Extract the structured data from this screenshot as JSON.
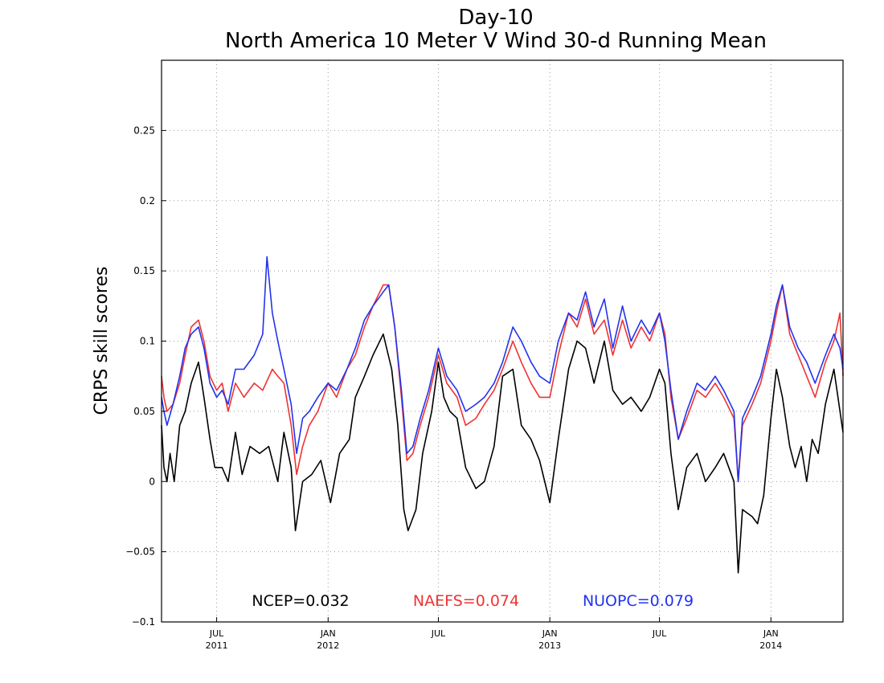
{
  "chart_data": {
    "type": "line",
    "title": "Day-10",
    "subtitle": "North America 10 Meter V Wind 30-d Running Mean",
    "xlabel": "",
    "ylabel": "CRPS skill scores",
    "xlim": [
      "2011-04-01",
      "2014-04-30"
    ],
    "ylim": [
      -0.1,
      0.3
    ],
    "yticks": [
      -0.1,
      -0.05,
      0,
      0.05,
      0.1,
      0.15,
      0.2,
      0.25
    ],
    "ytick_labels": [
      "−0.1",
      "−0.05",
      "0",
      "0.05",
      "0.1",
      "0.15",
      "0.2",
      "0.25"
    ],
    "xticks": [
      {
        "date": "2011-07-01",
        "month": "JUL",
        "year": "2011"
      },
      {
        "date": "2012-01-01",
        "month": "JAN",
        "year": "2012"
      },
      {
        "date": "2012-07-01",
        "month": "JUL",
        "year": ""
      },
      {
        "date": "2013-01-01",
        "month": "JAN",
        "year": "2013"
      },
      {
        "date": "2013-07-01",
        "month": "JUL",
        "year": ""
      },
      {
        "date": "2014-01-01",
        "month": "JAN",
        "year": "2014"
      }
    ],
    "grid": true,
    "legend_placement": "bottom",
    "series": [
      {
        "name": "NCEP",
        "score_label": "NCEP=0.032",
        "color": "#000000",
        "points": [
          [
            "2011-04-01",
            0.04
          ],
          [
            "2011-04-05",
            0.01
          ],
          [
            "2011-04-10",
            0.0
          ],
          [
            "2011-04-15",
            0.02
          ],
          [
            "2011-04-22",
            0.0
          ],
          [
            "2011-05-01",
            0.04
          ],
          [
            "2011-05-10",
            0.05
          ],
          [
            "2011-05-20",
            0.07
          ],
          [
            "2011-06-01",
            0.085
          ],
          [
            "2011-06-10",
            0.06
          ],
          [
            "2011-06-20",
            0.03
          ],
          [
            "2011-06-28",
            0.01
          ],
          [
            "2011-07-10",
            0.01
          ],
          [
            "2011-07-20",
            0.0
          ],
          [
            "2011-08-01",
            0.035
          ],
          [
            "2011-08-12",
            0.005
          ],
          [
            "2011-08-25",
            0.025
          ],
          [
            "2011-09-10",
            0.02
          ],
          [
            "2011-09-25",
            0.025
          ],
          [
            "2011-10-10",
            0.0
          ],
          [
            "2011-10-20",
            0.035
          ],
          [
            "2011-11-01",
            0.01
          ],
          [
            "2011-11-08",
            -0.035
          ],
          [
            "2011-11-20",
            0.0
          ],
          [
            "2011-12-05",
            0.005
          ],
          [
            "2011-12-20",
            0.015
          ],
          [
            "2012-01-05",
            -0.015
          ],
          [
            "2012-01-20",
            0.02
          ],
          [
            "2012-02-05",
            0.03
          ],
          [
            "2012-02-15",
            0.06
          ],
          [
            "2012-03-01",
            0.075
          ],
          [
            "2012-03-15",
            0.09
          ],
          [
            "2012-04-01",
            0.105
          ],
          [
            "2012-04-15",
            0.08
          ],
          [
            "2012-04-25",
            0.04
          ],
          [
            "2012-05-05",
            -0.02
          ],
          [
            "2012-05-12",
            -0.035
          ],
          [
            "2012-05-25",
            -0.02
          ],
          [
            "2012-06-05",
            0.02
          ],
          [
            "2012-06-20",
            0.05
          ],
          [
            "2012-07-01",
            0.085
          ],
          [
            "2012-07-10",
            0.06
          ],
          [
            "2012-07-20",
            0.05
          ],
          [
            "2012-08-01",
            0.045
          ],
          [
            "2012-08-15",
            0.01
          ],
          [
            "2012-09-01",
            -0.005
          ],
          [
            "2012-09-15",
            0.0
          ],
          [
            "2012-10-01",
            0.025
          ],
          [
            "2012-10-15",
            0.075
          ],
          [
            "2012-11-01",
            0.08
          ],
          [
            "2012-11-15",
            0.04
          ],
          [
            "2012-12-01",
            0.03
          ],
          [
            "2012-12-15",
            0.015
          ],
          [
            "2013-01-01",
            -0.015
          ],
          [
            "2013-01-15",
            0.03
          ],
          [
            "2013-02-01",
            0.08
          ],
          [
            "2013-02-15",
            0.1
          ],
          [
            "2013-03-01",
            0.095
          ],
          [
            "2013-03-15",
            0.07
          ],
          [
            "2013-04-01",
            0.1
          ],
          [
            "2013-04-15",
            0.065
          ],
          [
            "2013-05-01",
            0.055
          ],
          [
            "2013-05-15",
            0.06
          ],
          [
            "2013-06-01",
            0.05
          ],
          [
            "2013-06-15",
            0.06
          ],
          [
            "2013-07-01",
            0.08
          ],
          [
            "2013-07-10",
            0.07
          ],
          [
            "2013-07-20",
            0.02
          ],
          [
            "2013-08-01",
            -0.02
          ],
          [
            "2013-08-15",
            0.01
          ],
          [
            "2013-09-01",
            0.02
          ],
          [
            "2013-09-15",
            0.0
          ],
          [
            "2013-10-01",
            0.01
          ],
          [
            "2013-10-15",
            0.02
          ],
          [
            "2013-11-01",
            0.0
          ],
          [
            "2013-11-08",
            -0.065
          ],
          [
            "2013-11-15",
            -0.02
          ],
          [
            "2013-12-01",
            -0.025
          ],
          [
            "2013-12-10",
            -0.03
          ],
          [
            "2013-12-20",
            -0.01
          ],
          [
            "2014-01-01",
            0.045
          ],
          [
            "2014-01-10",
            0.08
          ],
          [
            "2014-01-20",
            0.06
          ],
          [
            "2014-02-01",
            0.025
          ],
          [
            "2014-02-10",
            0.01
          ],
          [
            "2014-02-20",
            0.025
          ],
          [
            "2014-03-01",
            0.0
          ],
          [
            "2014-03-10",
            0.03
          ],
          [
            "2014-03-20",
            0.02
          ],
          [
            "2014-04-01",
            0.055
          ],
          [
            "2014-04-15",
            0.08
          ],
          [
            "2014-04-30",
            0.035
          ]
        ]
      },
      {
        "name": "NAEFS",
        "score_label": "NAEFS=0.074",
        "color": "#ee3333",
        "points": [
          [
            "2011-04-01",
            0.075
          ],
          [
            "2011-04-05",
            0.06
          ],
          [
            "2011-04-10",
            0.05
          ],
          [
            "2011-04-20",
            0.055
          ],
          [
            "2011-05-01",
            0.07
          ],
          [
            "2011-05-10",
            0.09
          ],
          [
            "2011-05-20",
            0.11
          ],
          [
            "2011-06-01",
            0.115
          ],
          [
            "2011-06-10",
            0.1
          ],
          [
            "2011-06-20",
            0.075
          ],
          [
            "2011-07-01",
            0.065
          ],
          [
            "2011-07-10",
            0.07
          ],
          [
            "2011-07-20",
            0.05
          ],
          [
            "2011-08-01",
            0.07
          ],
          [
            "2011-08-15",
            0.06
          ],
          [
            "2011-09-01",
            0.07
          ],
          [
            "2011-09-15",
            0.065
          ],
          [
            "2011-10-01",
            0.08
          ],
          [
            "2011-10-10",
            0.075
          ],
          [
            "2011-10-20",
            0.07
          ],
          [
            "2011-11-01",
            0.04
          ],
          [
            "2011-11-10",
            0.005
          ],
          [
            "2011-11-20",
            0.025
          ],
          [
            "2011-12-01",
            0.04
          ],
          [
            "2011-12-15",
            0.05
          ],
          [
            "2012-01-01",
            0.07
          ],
          [
            "2012-01-15",
            0.06
          ],
          [
            "2012-02-01",
            0.08
          ],
          [
            "2012-02-15",
            0.09
          ],
          [
            "2012-03-01",
            0.11
          ],
          [
            "2012-03-15",
            0.125
          ],
          [
            "2012-04-01",
            0.14
          ],
          [
            "2012-04-10",
            0.14
          ],
          [
            "2012-04-20",
            0.11
          ],
          [
            "2012-05-01",
            0.06
          ],
          [
            "2012-05-10",
            0.015
          ],
          [
            "2012-05-20",
            0.02
          ],
          [
            "2012-06-01",
            0.04
          ],
          [
            "2012-06-15",
            0.06
          ],
          [
            "2012-07-01",
            0.09
          ],
          [
            "2012-07-15",
            0.07
          ],
          [
            "2012-08-01",
            0.06
          ],
          [
            "2012-08-15",
            0.04
          ],
          [
            "2012-09-01",
            0.045
          ],
          [
            "2012-09-15",
            0.055
          ],
          [
            "2012-10-01",
            0.065
          ],
          [
            "2012-10-15",
            0.08
          ],
          [
            "2012-11-01",
            0.1
          ],
          [
            "2012-11-15",
            0.085
          ],
          [
            "2012-12-01",
            0.07
          ],
          [
            "2012-12-15",
            0.06
          ],
          [
            "2013-01-01",
            0.06
          ],
          [
            "2013-01-15",
            0.09
          ],
          [
            "2013-02-01",
            0.12
          ],
          [
            "2013-02-15",
            0.11
          ],
          [
            "2013-03-01",
            0.13
          ],
          [
            "2013-03-15",
            0.105
          ],
          [
            "2013-04-01",
            0.115
          ],
          [
            "2013-04-15",
            0.09
          ],
          [
            "2013-05-01",
            0.115
          ],
          [
            "2013-05-15",
            0.095
          ],
          [
            "2013-06-01",
            0.11
          ],
          [
            "2013-06-15",
            0.1
          ],
          [
            "2013-07-01",
            0.12
          ],
          [
            "2013-07-10",
            0.105
          ],
          [
            "2013-07-20",
            0.06
          ],
          [
            "2013-08-01",
            0.03
          ],
          [
            "2013-08-15",
            0.045
          ],
          [
            "2013-09-01",
            0.065
          ],
          [
            "2013-09-15",
            0.06
          ],
          [
            "2013-10-01",
            0.07
          ],
          [
            "2013-10-15",
            0.06
          ],
          [
            "2013-11-01",
            0.045
          ],
          [
            "2013-11-08",
            0.0
          ],
          [
            "2013-11-15",
            0.04
          ],
          [
            "2013-12-01",
            0.055
          ],
          [
            "2013-12-15",
            0.07
          ],
          [
            "2014-01-01",
            0.1
          ],
          [
            "2014-01-10",
            0.12
          ],
          [
            "2014-01-20",
            0.14
          ],
          [
            "2014-02-01",
            0.105
          ],
          [
            "2014-02-15",
            0.09
          ],
          [
            "2014-03-01",
            0.075
          ],
          [
            "2014-03-15",
            0.06
          ],
          [
            "2014-04-01",
            0.085
          ],
          [
            "2014-04-15",
            0.1
          ],
          [
            "2014-04-25",
            0.12
          ],
          [
            "2014-04-30",
            0.075
          ]
        ]
      },
      {
        "name": "NUOPC",
        "score_label": "NUOPC=0.079",
        "color": "#2233ee",
        "points": [
          [
            "2011-04-01",
            0.06
          ],
          [
            "2011-04-05",
            0.05
          ],
          [
            "2011-04-10",
            0.04
          ],
          [
            "2011-04-20",
            0.055
          ],
          [
            "2011-05-01",
            0.075
          ],
          [
            "2011-05-10",
            0.095
          ],
          [
            "2011-05-20",
            0.105
          ],
          [
            "2011-06-01",
            0.11
          ],
          [
            "2011-06-10",
            0.095
          ],
          [
            "2011-06-20",
            0.07
          ],
          [
            "2011-07-01",
            0.06
          ],
          [
            "2011-07-10",
            0.065
          ],
          [
            "2011-07-20",
            0.055
          ],
          [
            "2011-08-01",
            0.08
          ],
          [
            "2011-08-15",
            0.08
          ],
          [
            "2011-09-01",
            0.09
          ],
          [
            "2011-09-15",
            0.105
          ],
          [
            "2011-09-22",
            0.16
          ],
          [
            "2011-10-01",
            0.12
          ],
          [
            "2011-10-10",
            0.1
          ],
          [
            "2011-10-20",
            0.08
          ],
          [
            "2011-11-01",
            0.055
          ],
          [
            "2011-11-10",
            0.02
          ],
          [
            "2011-11-20",
            0.045
          ],
          [
            "2011-12-01",
            0.05
          ],
          [
            "2011-12-15",
            0.06
          ],
          [
            "2012-01-01",
            0.07
          ],
          [
            "2012-01-15",
            0.065
          ],
          [
            "2012-02-01",
            0.08
          ],
          [
            "2012-02-15",
            0.095
          ],
          [
            "2012-03-01",
            0.115
          ],
          [
            "2012-03-15",
            0.125
          ],
          [
            "2012-04-01",
            0.135
          ],
          [
            "2012-04-10",
            0.14
          ],
          [
            "2012-04-20",
            0.11
          ],
          [
            "2012-05-01",
            0.065
          ],
          [
            "2012-05-10",
            0.02
          ],
          [
            "2012-05-20",
            0.025
          ],
          [
            "2012-06-01",
            0.045
          ],
          [
            "2012-06-15",
            0.065
          ],
          [
            "2012-07-01",
            0.095
          ],
          [
            "2012-07-15",
            0.075
          ],
          [
            "2012-08-01",
            0.065
          ],
          [
            "2012-08-15",
            0.05
          ],
          [
            "2012-09-01",
            0.055
          ],
          [
            "2012-09-15",
            0.06
          ],
          [
            "2012-10-01",
            0.07
          ],
          [
            "2012-10-15",
            0.085
          ],
          [
            "2012-11-01",
            0.11
          ],
          [
            "2012-11-15",
            0.1
          ],
          [
            "2012-12-01",
            0.085
          ],
          [
            "2012-12-15",
            0.075
          ],
          [
            "2013-01-01",
            0.07
          ],
          [
            "2013-01-15",
            0.1
          ],
          [
            "2013-02-01",
            0.12
          ],
          [
            "2013-02-15",
            0.115
          ],
          [
            "2013-03-01",
            0.135
          ],
          [
            "2013-03-15",
            0.11
          ],
          [
            "2013-04-01",
            0.13
          ],
          [
            "2013-04-15",
            0.095
          ],
          [
            "2013-05-01",
            0.125
          ],
          [
            "2013-05-15",
            0.1
          ],
          [
            "2013-06-01",
            0.115
          ],
          [
            "2013-06-15",
            0.105
          ],
          [
            "2013-07-01",
            0.12
          ],
          [
            "2013-07-10",
            0.1
          ],
          [
            "2013-07-20",
            0.065
          ],
          [
            "2013-08-01",
            0.03
          ],
          [
            "2013-08-15",
            0.05
          ],
          [
            "2013-09-01",
            0.07
          ],
          [
            "2013-09-15",
            0.065
          ],
          [
            "2013-10-01",
            0.075
          ],
          [
            "2013-10-15",
            0.065
          ],
          [
            "2013-11-01",
            0.05
          ],
          [
            "2013-11-08",
            0.0
          ],
          [
            "2013-11-15",
            0.045
          ],
          [
            "2013-12-01",
            0.06
          ],
          [
            "2013-12-15",
            0.075
          ],
          [
            "2014-01-01",
            0.105
          ],
          [
            "2014-01-10",
            0.125
          ],
          [
            "2014-01-20",
            0.14
          ],
          [
            "2014-02-01",
            0.11
          ],
          [
            "2014-02-15",
            0.095
          ],
          [
            "2014-03-01",
            0.085
          ],
          [
            "2014-03-15",
            0.07
          ],
          [
            "2014-04-01",
            0.09
          ],
          [
            "2014-04-15",
            0.105
          ],
          [
            "2014-04-25",
            0.095
          ],
          [
            "2014-04-30",
            0.08
          ]
        ]
      }
    ]
  }
}
